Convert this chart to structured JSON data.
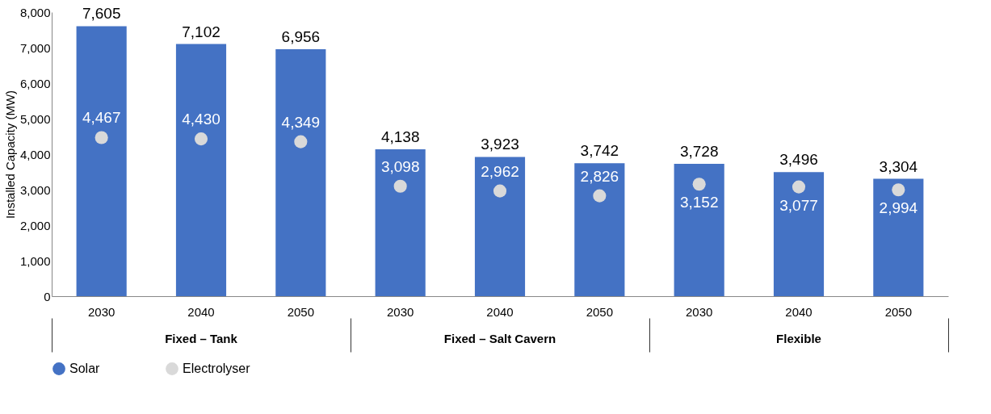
{
  "chart_data": {
    "type": "bar",
    "ylabel": "Installed Capacity (MW)",
    "categories": [
      "2030",
      "2040",
      "2050",
      "2030",
      "2040",
      "2050",
      "2030",
      "2040",
      "2050"
    ],
    "series": [
      {
        "name": "Solar",
        "color": "#4472c4",
        "values": [
          7605,
          7102,
          6956,
          4138,
          3923,
          3742,
          3728,
          3496,
          3304
        ],
        "value_labels": [
          "7,605",
          "7,102",
          "6,956",
          "4,138",
          "3,923",
          "3,742",
          "3,728",
          "3,496",
          "3,304"
        ]
      },
      {
        "name": "Electrolyser",
        "type": "scatter",
        "color": "#d9d9d9",
        "values": [
          4467,
          4430,
          4349,
          3098,
          2962,
          2826,
          3152,
          3077,
          2994
        ],
        "value_labels": [
          "4,467",
          "4,430",
          "4,349",
          "3,098",
          "2,962",
          "2,826",
          "3,152",
          "3,077",
          "2,994"
        ]
      }
    ],
    "ylim": [
      0,
      8000
    ],
    "yticks": [
      0,
      {
        "value": 1000,
        "label": "1,000"
      },
      {
        "value": 2000,
        "label": "2,000"
      },
      {
        "value": 3000,
        "label": "3,000"
      },
      {
        "value": 4000,
        "label": "4,000"
      },
      {
        "value": 5000,
        "label": "5,000"
      },
      {
        "value": 6000,
        "label": "6,000"
      },
      {
        "value": 7000,
        "label": "7,000"
      },
      {
        "value": 8000,
        "label": "8,000"
      }
    ],
    "annotations": [
      "Fixed – Tank",
      "Fixed – Salt Cavern",
      "Flexible"
    ],
    "legend": "bottom",
    "marker": "circle"
  }
}
